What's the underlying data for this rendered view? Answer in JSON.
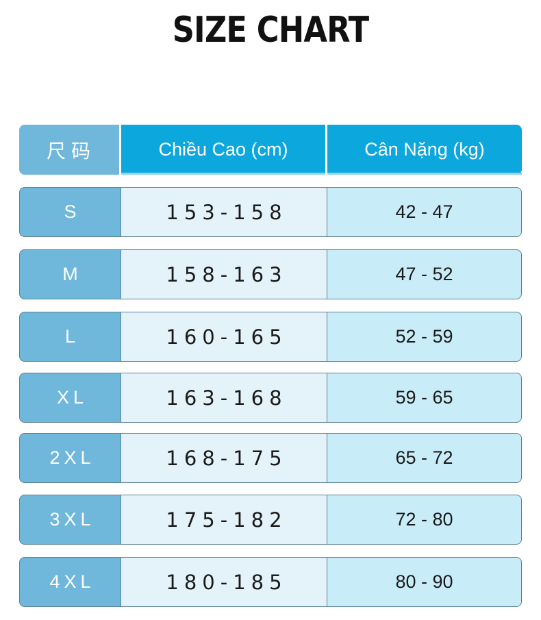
{
  "title": "SIZE CHART",
  "header": {
    "size": "尺码",
    "height": "Chiều Cao (cm)",
    "weight": "Cân Nặng (kg)"
  },
  "rows": [
    {
      "size": "S",
      "height": "153-158",
      "weight": "42 - 47"
    },
    {
      "size": "M",
      "height": "158-163",
      "weight": "47 - 52"
    },
    {
      "size": "L",
      "height": "160-165",
      "weight": "52 - 59"
    },
    {
      "size": "XL",
      "height": "163-168",
      "weight": "59 - 65"
    },
    {
      "size": "2XL",
      "height": "168-175",
      "weight": "65 - 72"
    },
    {
      "size": "3XL",
      "height": "175-182",
      "weight": "72 - 80"
    },
    {
      "size": "4XL",
      "height": "180-185",
      "weight": "80 - 90"
    }
  ]
}
